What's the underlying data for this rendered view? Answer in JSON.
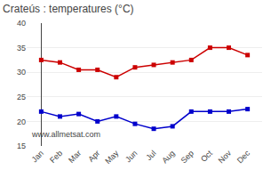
{
  "chart_data": {
    "type": "line",
    "title": "Crateús : temperatures (°C)",
    "categories": [
      "Jan",
      "Feb",
      "Mar",
      "Apr",
      "May",
      "Jun",
      "Jul",
      "Aug",
      "Sep",
      "Oct",
      "Nov",
      "Dec"
    ],
    "series": [
      {
        "color": "#cc0000",
        "marker": "square",
        "values": [
          32.5,
          32.0,
          30.5,
          30.5,
          29.0,
          31.0,
          31.5,
          32.0,
          32.5,
          35.0,
          35.0,
          33.5
        ]
      },
      {
        "color": "#0000cc",
        "marker": "square",
        "values": [
          22.0,
          21.0,
          21.5,
          20.0,
          21.0,
          19.5,
          18.5,
          19.0,
          22.0,
          22.0,
          22.0,
          22.5
        ]
      }
    ],
    "ylim": [
      15,
      40
    ],
    "yticks": [
      15,
      20,
      25,
      30,
      35,
      40
    ],
    "grid": true,
    "annotations": [
      "www.allmetsat.com"
    ]
  }
}
